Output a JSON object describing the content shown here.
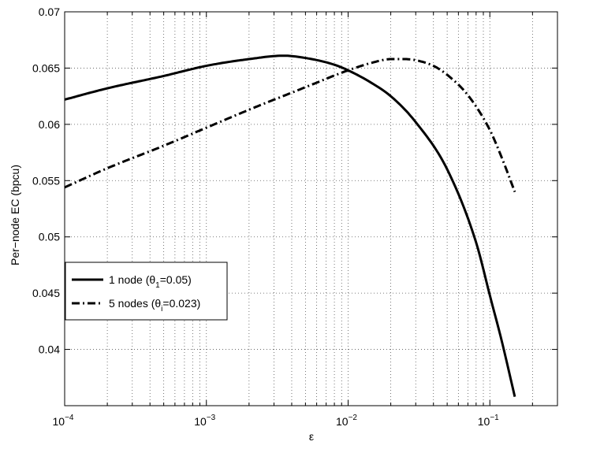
{
  "chart_data": {
    "type": "line",
    "xscale": "log",
    "xlabel": "ε",
    "ylabel": "Per−node EC (bpcu)",
    "xlim": [
      0.0001,
      0.3
    ],
    "ylim": [
      0.035,
      0.07
    ],
    "grid": true,
    "legend_position": "lower-left",
    "x_ticks": [
      {
        "value": 0.0001,
        "base": "10",
        "exp": "−4"
      },
      {
        "value": 0.001,
        "base": "10",
        "exp": "−3"
      },
      {
        "value": 0.01,
        "base": "10",
        "exp": "−2"
      },
      {
        "value": 0.1,
        "base": "10",
        "exp": "−1"
      }
    ],
    "y_ticks": [
      {
        "value": 0.04,
        "label": "0.04"
      },
      {
        "value": 0.045,
        "label": "0.045"
      },
      {
        "value": 0.05,
        "label": "0.05"
      },
      {
        "value": 0.055,
        "label": "0.055"
      },
      {
        "value": 0.06,
        "label": "0.06"
      },
      {
        "value": 0.065,
        "label": "0.065"
      },
      {
        "value": 0.07,
        "label": "0.07"
      }
    ],
    "series": [
      {
        "name": "1 node (θ1=0.05)",
        "legend": {
          "main": "1 node (θ",
          "sub": "1",
          "tail": "=0.05)"
        },
        "style": "solid",
        "color": "#000000",
        "x": [
          0.0001,
          0.0002,
          0.0005,
          0.001,
          0.002,
          0.0035,
          0.005,
          0.008,
          0.01,
          0.015,
          0.02,
          0.03,
          0.05,
          0.08,
          0.1,
          0.12,
          0.15
        ],
        "y": [
          0.0622,
          0.0632,
          0.0643,
          0.0652,
          0.0658,
          0.0661,
          0.0659,
          0.0653,
          0.0648,
          0.0636,
          0.0625,
          0.0602,
          0.056,
          0.0495,
          0.0448,
          0.041,
          0.0358
        ]
      },
      {
        "name": "5 nodes (θi=0.023)",
        "legend": {
          "main": "5 nodes (θ",
          "sub": "i",
          "tail": "=0.023)"
        },
        "style": "dashdot",
        "color": "#000000",
        "x": [
          0.0001,
          0.0002,
          0.0005,
          0.001,
          0.002,
          0.005,
          0.01,
          0.015,
          0.02,
          0.025,
          0.03,
          0.04,
          0.05,
          0.07,
          0.1,
          0.12,
          0.15
        ],
        "y": [
          0.0544,
          0.0561,
          0.0581,
          0.0597,
          0.0613,
          0.0633,
          0.0648,
          0.0655,
          0.0658,
          0.0658,
          0.0657,
          0.0652,
          0.0644,
          0.0626,
          0.0595,
          0.0572,
          0.054
        ]
      }
    ]
  }
}
